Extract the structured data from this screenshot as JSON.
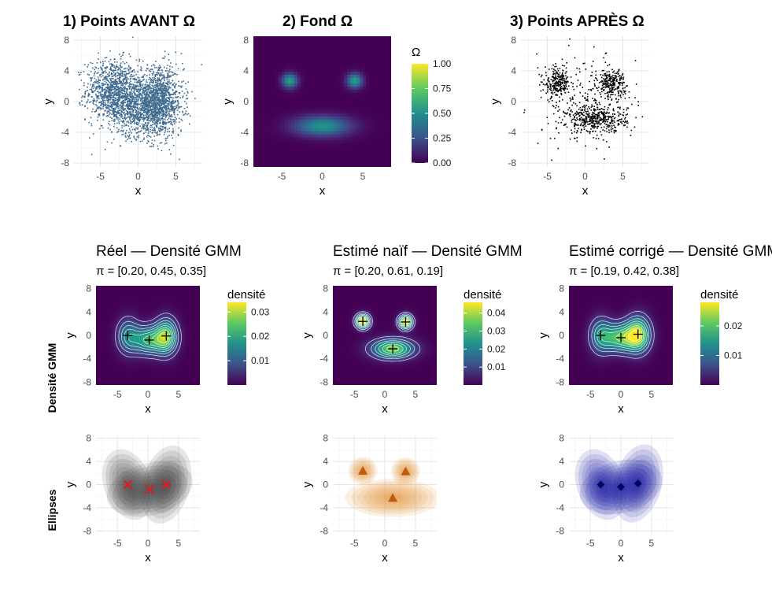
{
  "chart_data": [
    {
      "id": "p1",
      "type": "scatter",
      "title": "1) Points AVANT Ω",
      "xlabel": "x",
      "ylabel": "y",
      "xlim": [
        -8.5,
        8.5
      ],
      "ylim": [
        -8.5,
        8.5
      ],
      "xticks": [
        -5,
        0,
        5
      ],
      "yticks": [
        -8,
        -4,
        0,
        4,
        8
      ],
      "color": "#3E6A8F",
      "n_points": 3000,
      "clusters": [
        {
          "mean": [
            -3.5,
            1.5
          ],
          "sd": [
            1.7,
            2.0
          ],
          "weight": 0.3
        },
        {
          "mean": [
            0.0,
            -0.5
          ],
          "sd": [
            2.0,
            2.0
          ],
          "weight": 0.35
        },
        {
          "mean": [
            3.0,
            0.0
          ],
          "sd": [
            1.5,
            2.2
          ],
          "weight": 0.35
        }
      ]
    },
    {
      "id": "p2",
      "type": "heatmap",
      "title": "2) Fond Ω",
      "xlabel": "x",
      "ylabel": "y",
      "xlim": [
        -8.5,
        8.5
      ],
      "ylim": [
        -8.5,
        8.5
      ],
      "xticks": [
        -5,
        0,
        5
      ],
      "yticks": [
        -8,
        -4,
        0,
        4,
        8
      ],
      "legend_title": "Ω",
      "legend_ticks": [
        "0.00",
        "0.25",
        "0.50",
        "0.75",
        "1.00"
      ],
      "legend_range": [
        0,
        1
      ],
      "blobs": [
        {
          "mean": [
            -4,
            2.7
          ],
          "sd": [
            0.65,
            0.65
          ],
          "amp": 0.58
        },
        {
          "mean": [
            4,
            2.7
          ],
          "sd": [
            0.65,
            0.65
          ],
          "amp": 0.58
        },
        {
          "mean": [
            0,
            -3.2
          ],
          "sd": [
            2.4,
            0.9
          ],
          "amp": 0.52
        }
      ]
    },
    {
      "id": "p3",
      "type": "scatter",
      "title": "3) Points APRÈS Ω",
      "xlabel": "x",
      "ylabel": "y",
      "xlim": [
        -8.5,
        8.5
      ],
      "ylim": [
        -8.5,
        8.5
      ],
      "xticks": [
        -5,
        0,
        5
      ],
      "yticks": [
        -8,
        -4,
        0,
        4,
        8
      ],
      "color": "#000000",
      "n_points": 1100,
      "clusters": [
        {
          "mean": [
            -3.7,
            2.4
          ],
          "sd": [
            0.8,
            0.9
          ],
          "weight": 0.2
        },
        {
          "mean": [
            3.5,
            2.4
          ],
          "sd": [
            0.9,
            0.9
          ],
          "weight": 0.22
        },
        {
          "mean": [
            1.5,
            -2.3
          ],
          "sd": [
            2.0,
            0.9
          ],
          "weight": 0.38
        },
        {
          "mean": [
            0.0,
            0.0
          ],
          "sd": [
            3.5,
            3.0
          ],
          "weight": 0.2
        }
      ]
    },
    {
      "id": "d1",
      "type": "heatmap",
      "title": "Réel — Densité GMM",
      "subtitle": "π = [0.20, 0.45, 0.35]",
      "xlabel": "x",
      "ylabel": "y",
      "xlim": [
        -8.5,
        8.5
      ],
      "ylim": [
        -8.5,
        8.5
      ],
      "xticks": [
        -5,
        0,
        5
      ],
      "yticks": [
        -8,
        -4,
        0,
        4,
        8
      ],
      "legend_title": "densité",
      "legend_ticks": [
        "0.01",
        "0.02",
        "0.03"
      ],
      "legend_range": [
        0,
        0.034
      ],
      "components": [
        {
          "mean": [
            -3.3,
            0
          ],
          "sd": [
            1.2,
            2.0
          ],
          "weight": 0.2
        },
        {
          "mean": [
            0.2,
            -0.8
          ],
          "sd": [
            2.0,
            1.6
          ],
          "weight": 0.45
        },
        {
          "mean": [
            3.0,
            -0.1
          ],
          "sd": [
            1.2,
            2.0
          ],
          "weight": 0.35
        }
      ],
      "centers": [
        [
          -3.3,
          0
        ],
        [
          0.2,
          -0.8
        ],
        [
          3.0,
          -0.1
        ]
      ]
    },
    {
      "id": "d2",
      "type": "heatmap",
      "title": "Estimé naïf — Densité GMM",
      "subtitle": "π = [0.20, 0.61, 0.19]",
      "xlabel": "x",
      "ylabel": "y",
      "xlim": [
        -8.5,
        8.5
      ],
      "ylim": [
        -8.5,
        8.5
      ],
      "xticks": [
        -5,
        0,
        5
      ],
      "yticks": [
        -8,
        -4,
        0,
        4,
        8
      ],
      "legend_title": "densité",
      "legend_ticks": [
        "0.01",
        "0.02",
        "0.03",
        "0.04"
      ],
      "legend_range": [
        0,
        0.046
      ],
      "components": [
        {
          "mean": [
            -3.6,
            2.4
          ],
          "sd": [
            0.75,
            0.8
          ],
          "weight": 0.2
        },
        {
          "mean": [
            1.3,
            -2.3
          ],
          "sd": [
            2.3,
            1.1
          ],
          "weight": 0.61
        },
        {
          "mean": [
            3.4,
            2.3
          ],
          "sd": [
            0.75,
            0.8
          ],
          "weight": 0.19
        }
      ],
      "centers": [
        [
          -3.6,
          2.4
        ],
        [
          1.3,
          -2.3
        ],
        [
          3.4,
          2.3
        ]
      ]
    },
    {
      "id": "d3",
      "type": "heatmap",
      "title": "Estimé corrigé — Densité GMM",
      "subtitle": "π = [0.19, 0.42, 0.38]",
      "xlabel": "x",
      "ylabel": "y",
      "xlim": [
        -8.5,
        8.5
      ],
      "ylim": [
        -8.5,
        8.5
      ],
      "xticks": [
        -5,
        0,
        5
      ],
      "yticks": [
        -8,
        -4,
        0,
        4,
        8
      ],
      "legend_title": "densité",
      "legend_ticks": [
        "0.01",
        "0.02"
      ],
      "legend_range": [
        0,
        0.028
      ],
      "components": [
        {
          "mean": [
            -3.3,
            0
          ],
          "sd": [
            1.2,
            2.0
          ],
          "weight": 0.19
        },
        {
          "mean": [
            0.0,
            -0.4
          ],
          "sd": [
            2.0,
            1.6
          ],
          "weight": 0.42
        },
        {
          "mean": [
            2.8,
            0.2
          ],
          "sd": [
            1.3,
            2.0
          ],
          "weight": 0.38
        }
      ],
      "centers": [
        [
          -3.3,
          0
        ],
        [
          0.0,
          -0.4
        ],
        [
          2.8,
          0.2
        ]
      ]
    },
    {
      "id": "e1",
      "type": "area",
      "xlabel": "x",
      "ylabel": "y",
      "xlim": [
        -8.5,
        8.5
      ],
      "ylim": [
        -8.5,
        8.5
      ],
      "xticks": [
        -5,
        0,
        5
      ],
      "yticks": [
        -8,
        -4,
        0,
        4,
        8
      ],
      "fill": "#3a3a3a",
      "marker": "x",
      "marker_color": "#e41a1c",
      "ellipses": [
        {
          "center": [
            -3.3,
            0
          ],
          "rx": 1.3,
          "ry": 2.1,
          "angle": -20
        },
        {
          "center": [
            0.3,
            -0.8
          ],
          "rx": 2.4,
          "ry": 1.5,
          "angle": -15
        },
        {
          "center": [
            3.0,
            0.0
          ],
          "rx": 1.3,
          "ry": 2.3,
          "angle": 15
        }
      ],
      "centers": [
        [
          -3.3,
          0
        ],
        [
          0.3,
          -0.8
        ],
        [
          3.0,
          0.0
        ]
      ]
    },
    {
      "id": "e2",
      "type": "area",
      "xlabel": "x",
      "ylabel": "y",
      "xlim": [
        -8.5,
        8.5
      ],
      "ylim": [
        -8.5,
        8.5
      ],
      "xticks": [
        -5,
        0,
        5
      ],
      "yticks": [
        -8,
        -4,
        0,
        4,
        8
      ],
      "fill": "#e08a2a",
      "marker": "triangle",
      "marker_color": "#c15a0e",
      "ellipses": [
        {
          "center": [
            -3.6,
            2.4
          ],
          "rx": 0.8,
          "ry": 0.8,
          "angle": 0
        },
        {
          "center": [
            1.3,
            -2.3
          ],
          "rx": 2.6,
          "ry": 1.1,
          "angle": 0
        },
        {
          "center": [
            3.4,
            2.3
          ],
          "rx": 0.8,
          "ry": 0.8,
          "angle": 0
        }
      ],
      "centers": [
        [
          -3.6,
          2.4
        ],
        [
          1.3,
          -2.3
        ],
        [
          3.4,
          2.3
        ]
      ]
    },
    {
      "id": "e3",
      "type": "area",
      "xlabel": "x",
      "ylabel": "y",
      "xlim": [
        -8.5,
        8.5
      ],
      "ylim": [
        -8.5,
        8.5
      ],
      "xticks": [
        -5,
        0,
        5
      ],
      "yticks": [
        -8,
        -4,
        0,
        4,
        8
      ],
      "fill": "#1a1aa0",
      "marker": "diamond",
      "marker_color": "#06065e",
      "ellipses": [
        {
          "center": [
            -3.3,
            0
          ],
          "rx": 1.3,
          "ry": 2.1,
          "angle": -20
        },
        {
          "center": [
            0.0,
            -0.4
          ],
          "rx": 2.3,
          "ry": 1.5,
          "angle": -15
        },
        {
          "center": [
            2.8,
            0.2
          ],
          "rx": 1.3,
          "ry": 2.3,
          "angle": 15
        }
      ],
      "centers": [
        [
          -3.3,
          0
        ],
        [
          0.0,
          -0.4
        ],
        [
          2.8,
          0.2
        ]
      ]
    }
  ],
  "row_labels": [
    "Densité GMM",
    "Ellipses"
  ]
}
